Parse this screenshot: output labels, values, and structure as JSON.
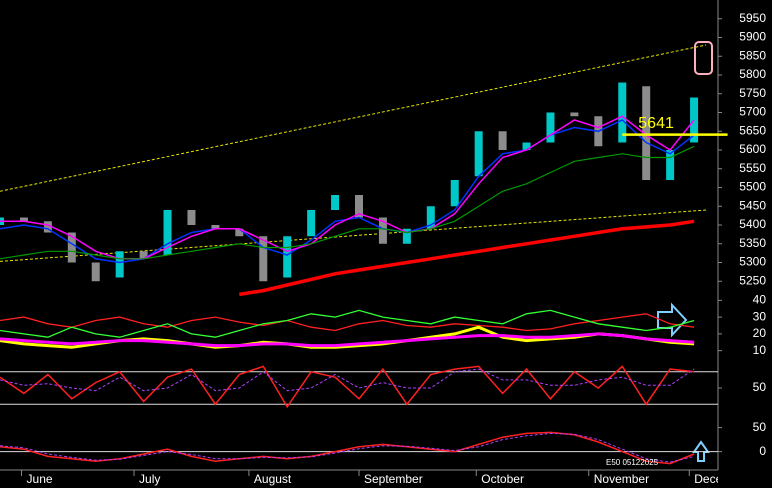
{
  "chart_data": [
    {
      "type": "candlestick",
      "x": [
        0,
        1,
        2,
        3,
        4,
        5,
        6,
        7,
        8,
        9,
        10,
        11,
        12,
        13,
        14,
        15,
        16,
        17,
        18,
        19,
        20,
        21,
        22,
        23,
        24,
        25,
        26,
        27,
        28,
        29
      ],
      "xlim": [
        0,
        30
      ],
      "open": [
        5400,
        5420,
        5410,
        5380,
        5300,
        5260,
        5330,
        5320,
        5440,
        5400,
        5390,
        5370,
        5260,
        5370,
        5440,
        5480,
        5420,
        5350,
        5390,
        5450,
        5530,
        5650,
        5600,
        5620,
        5700,
        5690,
        5620,
        5770,
        5520,
        5620
      ],
      "close": [
        5420,
        5410,
        5380,
        5300,
        5250,
        5330,
        5310,
        5440,
        5400,
        5390,
        5370,
        5250,
        5370,
        5440,
        5480,
        5420,
        5350,
        5390,
        5450,
        5520,
        5650,
        5600,
        5620,
        5700,
        5690,
        5610,
        5780,
        5520,
        5600,
        5740
      ],
      "up_color": "#00c8c8",
      "down_color": "#8c8c8c",
      "ylim": [
        5200,
        6000
      ],
      "yticks": [
        5950,
        5900,
        5850,
        5800,
        5750,
        5700,
        5650,
        5600,
        5550,
        5500,
        5450,
        5400,
        5350,
        5300,
        5250
      ],
      "series": [
        {
          "color": "#0033ff",
          "width": 1.5,
          "values": [
            5390,
            5400,
            5390,
            5350,
            5310,
            5300,
            5310,
            5350,
            5380,
            5390,
            5390,
            5340,
            5320,
            5360,
            5410,
            5420,
            5390,
            5380,
            5400,
            5440,
            5530,
            5590,
            5600,
            5640,
            5660,
            5650,
            5680,
            5620,
            5590,
            5640
          ]
        },
        {
          "color": "#ff00ff",
          "width": 1.5,
          "values": [
            5410,
            5410,
            5400,
            5370,
            5330,
            5310,
            5310,
            5340,
            5370,
            5390,
            5390,
            5360,
            5330,
            5350,
            5400,
            5430,
            5410,
            5380,
            5390,
            5430,
            5510,
            5580,
            5600,
            5640,
            5680,
            5660,
            5690,
            5640,
            5600,
            5680
          ]
        },
        {
          "color": "#009900",
          "width": 1.2,
          "values": [
            5310,
            5320,
            5330,
            5330,
            5320,
            5310,
            5310,
            5320,
            5330,
            5340,
            5350,
            5340,
            5340,
            5350,
            5370,
            5390,
            5390,
            5380,
            5390,
            5410,
            5450,
            5490,
            5510,
            5540,
            5570,
            5580,
            5590,
            5580,
            5580,
            5610
          ]
        },
        {
          "color": "#ff0000",
          "width": 3.5,
          "values": [
            null,
            null,
            null,
            null,
            null,
            null,
            null,
            null,
            null,
            null,
            5215,
            5225,
            5240,
            5255,
            5270,
            5280,
            5290,
            5300,
            5310,
            5320,
            5330,
            5340,
            5350,
            5360,
            5370,
            5380,
            5390,
            5395,
            5400,
            5410
          ]
        }
      ],
      "trend_lines": [
        {
          "color": "#e6e600",
          "x": [
            0,
            29.5
          ],
          "values": [
            5490,
            5880
          ]
        },
        {
          "color": "#e6e600",
          "x": [
            0,
            29.5
          ],
          "values": [
            5303,
            5440
          ]
        }
      ],
      "hline": {
        "value": 5641,
        "color": "#ffff00",
        "x": [
          26,
          30.4
        ]
      }
    },
    {
      "type": "line",
      "x": [
        0,
        1,
        2,
        3,
        4,
        5,
        6,
        7,
        8,
        9,
        10,
        11,
        12,
        13,
        14,
        15,
        16,
        17,
        18,
        19,
        20,
        21,
        22,
        23,
        24,
        25,
        26,
        27,
        28,
        29
      ],
      "xlim": [
        0,
        30
      ],
      "ylim": [
        5,
        45
      ],
      "yticks": [
        40,
        30,
        20,
        10
      ],
      "series": [
        {
          "color": "#ff2020",
          "width": 1.3,
          "values": [
            28,
            30,
            26,
            24,
            28,
            30,
            26,
            24,
            28,
            30,
            27,
            25,
            28,
            24,
            22,
            26,
            28,
            25,
            24,
            26,
            25,
            24,
            22,
            23,
            26,
            28,
            30,
            32,
            26,
            24
          ]
        },
        {
          "color": "#33ff33",
          "width": 1.3,
          "values": [
            22,
            20,
            18,
            24,
            20,
            18,
            22,
            26,
            20,
            18,
            22,
            26,
            28,
            32,
            30,
            34,
            30,
            28,
            26,
            30,
            28,
            26,
            32,
            34,
            30,
            26,
            24,
            22,
            24,
            28
          ]
        },
        {
          "color": "#ffff00",
          "width": 3,
          "values": [
            16,
            14,
            13,
            12,
            14,
            16,
            17,
            16,
            14,
            12,
            13,
            15,
            14,
            12,
            12,
            13,
            14,
            16,
            18,
            20,
            24,
            18,
            16,
            17,
            18,
            20,
            19,
            17,
            15,
            14
          ]
        },
        {
          "color": "#ff00ff",
          "width": 3,
          "values": [
            17,
            16,
            15,
            14,
            15,
            16,
            16,
            15,
            14,
            13,
            13,
            14,
            14,
            13,
            13,
            14,
            15,
            16,
            17,
            18,
            19,
            19,
            18,
            18,
            19,
            20,
            19,
            17,
            16,
            15
          ]
        }
      ]
    },
    {
      "type": "line",
      "x": [
        0,
        1,
        2,
        3,
        4,
        5,
        6,
        7,
        8,
        9,
        10,
        11,
        12,
        13,
        14,
        15,
        16,
        17,
        18,
        19,
        20,
        21,
        22,
        23,
        24,
        25,
        26,
        27,
        28,
        29
      ],
      "xlim": [
        0,
        30
      ],
      "ylim": [
        0,
        100
      ],
      "yticks": [
        50
      ],
      "levels": [
        80,
        20
      ],
      "series": [
        {
          "color": "#ff2020",
          "width": 1.5,
          "values": [
            70,
            40,
            75,
            30,
            60,
            80,
            25,
            70,
            85,
            20,
            75,
            90,
            15,
            80,
            70,
            30,
            85,
            20,
            75,
            85,
            90,
            40,
            85,
            30,
            80,
            50,
            90,
            20,
            85,
            80
          ]
        },
        {
          "color": "#b040ff",
          "width": 1,
          "dash": true,
          "values": [
            65,
            55,
            58,
            50,
            45,
            70,
            45,
            50,
            75,
            45,
            50,
            80,
            45,
            50,
            75,
            50,
            60,
            50,
            50,
            80,
            85,
            65,
            65,
            55,
            55,
            65,
            70,
            55,
            55,
            85
          ]
        }
      ]
    },
    {
      "type": "line",
      "x": [
        0,
        1,
        2,
        3,
        4,
        5,
        6,
        7,
        8,
        9,
        10,
        11,
        12,
        13,
        14,
        15,
        16,
        17,
        18,
        19,
        20,
        21,
        22,
        23,
        24,
        25,
        26,
        27,
        28,
        29
      ],
      "xlim": [
        0,
        30
      ],
      "ylim": [
        -30,
        70
      ],
      "yticks": [
        50,
        0
      ],
      "levels": [
        0
      ],
      "series": [
        {
          "color": "#ff2020",
          "width": 1.5,
          "values": [
            10,
            5,
            -10,
            -15,
            -20,
            -15,
            -5,
            5,
            -10,
            -20,
            -15,
            -10,
            -15,
            -10,
            0,
            10,
            15,
            10,
            5,
            0,
            15,
            30,
            38,
            40,
            35,
            20,
            0,
            -20,
            -25,
            -5
          ]
        },
        {
          "color": "#b040ff",
          "width": 1,
          "dash": true,
          "values": [
            12,
            8,
            -5,
            -12,
            -18,
            -16,
            -8,
            0,
            -6,
            -15,
            -15,
            -12,
            -13,
            -11,
            -3,
            6,
            12,
            11,
            7,
            2,
            10,
            25,
            33,
            38,
            36,
            25,
            5,
            -15,
            -22,
            -10
          ]
        }
      ],
      "xticks": [
        {
          "value": 0.9,
          "label": "June"
        },
        {
          "value": 5.6,
          "label": "July"
        },
        {
          "value": 10.4,
          "label": "August"
        },
        {
          "value": 15,
          "label": "September"
        },
        {
          "value": 19.9,
          "label": "October"
        },
        {
          "value": 24.6,
          "label": "November"
        },
        {
          "value": 28.8,
          "label": "December"
        }
      ],
      "footnote": "E50 05122025"
    }
  ]
}
